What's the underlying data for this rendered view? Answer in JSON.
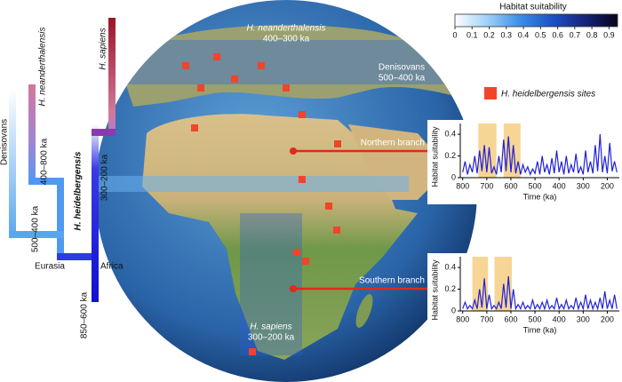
{
  "tree": {
    "taxa": [
      "Denisovans",
      "H. neanderthalensis",
      "H. sapiens"
    ],
    "stem": "H. heidelbergensis",
    "ages": [
      "400–800 ka",
      "500–400 ka",
      "300–200 ka",
      "850–600 ka"
    ],
    "regions": [
      "Eurasia",
      "Africa"
    ]
  },
  "map_labels": [
    {
      "name": "H. neanderthalensis",
      "age": "400–300 ka"
    },
    {
      "name": "Denisovans",
      "age": "500–400 ka"
    },
    {
      "name": "H. sapiens",
      "age": "300–200 ka"
    }
  ],
  "colorbar": {
    "title": "Habitat suitability",
    "lim": [
      0,
      0.95
    ],
    "ticks": [
      0,
      0.1,
      0.2,
      0.3,
      0.4,
      0.5,
      0.6,
      0.7,
      0.8,
      0.9
    ],
    "colors": [
      "#ffffff",
      "#9fd0f5",
      "#3a8ee6",
      "#1f4fc8",
      "#16247a",
      "#05051a"
    ]
  },
  "legend": {
    "label": "H. heidelbergensis sites",
    "color": "#f0452a"
  },
  "chart_data": [
    {
      "type": "line",
      "title": "Northern branch",
      "xlabel": "Time (ka)",
      "ylabel": "Habitat suitability",
      "color": "#2020d8",
      "highlights": [
        [
          735,
          660
        ],
        [
          630,
          560
        ]
      ],
      "highlight_color": "#f7d595",
      "x": [
        800,
        790,
        780,
        770,
        760,
        750,
        740,
        730,
        720,
        710,
        700,
        690,
        680,
        670,
        660,
        650,
        640,
        630,
        620,
        610,
        600,
        590,
        580,
        570,
        560,
        550,
        540,
        530,
        520,
        510,
        500,
        490,
        480,
        470,
        460,
        450,
        440,
        430,
        420,
        410,
        400,
        390,
        380,
        370,
        360,
        350,
        340,
        330,
        320,
        310,
        300,
        290,
        280,
        270,
        260,
        250,
        240,
        230,
        220,
        210,
        200,
        190,
        180,
        170,
        160
      ],
      "values": [
        0.05,
        0.15,
        0.03,
        0.12,
        0.05,
        0.2,
        0.04,
        0.25,
        0.06,
        0.3,
        0.05,
        0.28,
        0.04,
        0.1,
        0.03,
        0.2,
        0.05,
        0.35,
        0.06,
        0.38,
        0.05,
        0.3,
        0.04,
        0.15,
        0.03,
        0.12,
        0.05,
        0.1,
        0.03,
        0.08,
        0.04,
        0.15,
        0.03,
        0.2,
        0.05,
        0.12,
        0.03,
        0.18,
        0.04,
        0.25,
        0.05,
        0.15,
        0.03,
        0.2,
        0.04,
        0.12,
        0.05,
        0.22,
        0.04,
        0.1,
        0.03,
        0.25,
        0.05,
        0.15,
        0.04,
        0.3,
        0.06,
        0.4,
        0.05,
        0.2,
        0.04,
        0.32,
        0.06,
        0.15,
        0.05
      ],
      "xlim": [
        810,
        150
      ],
      "ylim": [
        0,
        0.45
      ],
      "xticks": [
        800,
        700,
        600,
        500,
        400,
        300,
        200
      ],
      "yticks": [
        0,
        0.2,
        0.4
      ]
    },
    {
      "type": "line",
      "title": "Southern branch",
      "xlabel": "Time (ka)",
      "ylabel": "Habitat suitability",
      "color": "#2020d8",
      "highlights": [
        [
          760,
          695
        ],
        [
          668,
          596
        ]
      ],
      "highlight_color": "#f7d595",
      "x": [
        800,
        790,
        780,
        770,
        760,
        750,
        740,
        730,
        720,
        710,
        700,
        690,
        680,
        670,
        660,
        650,
        640,
        630,
        620,
        610,
        600,
        590,
        580,
        570,
        560,
        550,
        540,
        530,
        520,
        510,
        500,
        490,
        480,
        470,
        460,
        450,
        440,
        430,
        420,
        410,
        400,
        390,
        380,
        370,
        360,
        350,
        340,
        330,
        320,
        310,
        300,
        290,
        280,
        270,
        260,
        250,
        240,
        230,
        220,
        210,
        200,
        190,
        180,
        170,
        160
      ],
      "values": [
        0.02,
        0.08,
        0.02,
        0.05,
        0.02,
        0.1,
        0.02,
        0.2,
        0.03,
        0.3,
        0.02,
        0.15,
        0.02,
        0.05,
        0.02,
        0.08,
        0.02,
        0.25,
        0.03,
        0.32,
        0.02,
        0.2,
        0.02,
        0.06,
        0.02,
        0.08,
        0.02,
        0.05,
        0.02,
        0.1,
        0.02,
        0.06,
        0.02,
        0.08,
        0.02,
        0.1,
        0.02,
        0.05,
        0.02,
        0.12,
        0.02,
        0.06,
        0.02,
        0.1,
        0.02,
        0.05,
        0.02,
        0.12,
        0.02,
        0.08,
        0.02,
        0.15,
        0.02,
        0.1,
        0.02,
        0.08,
        0.02,
        0.12,
        0.02,
        0.18,
        0.02,
        0.1,
        0.02,
        0.15,
        0.02
      ],
      "xlim": [
        810,
        150
      ],
      "ylim": [
        0,
        0.45
      ],
      "xticks": [
        800,
        700,
        600,
        500,
        400,
        300,
        200
      ],
      "yticks": [
        0,
        0.2,
        0.4
      ]
    }
  ]
}
